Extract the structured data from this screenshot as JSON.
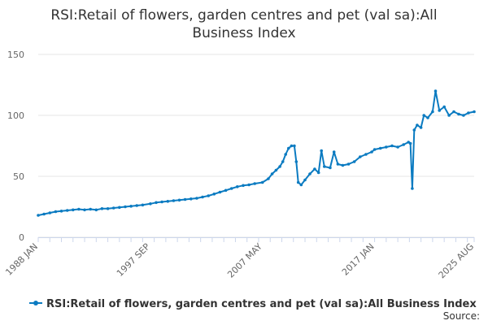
{
  "chart_data": {
    "type": "line",
    "title_lines": [
      "RSI:Retail of flowers, garden centres and pet (val sa):All",
      "Business Index"
    ],
    "xlabel": "",
    "ylabel": "",
    "ylim": [
      0,
      150
    ],
    "yticks": [
      0,
      50,
      100,
      150
    ],
    "x_range": [
      "1988-01",
      "2025-08"
    ],
    "x_tick_labels": [
      "1988 JAN",
      "1997 SEP",
      "2007 MAY",
      "2017 JAN",
      "2025 AUG"
    ],
    "grid": true,
    "legend_position": "bottom",
    "series": [
      {
        "name": "RSI:Retail of flowers, garden centres and pet (val sa):All Business Index",
        "color": "#0b7bc1",
        "points": [
          [
            "1988-01",
            18
          ],
          [
            "1988-07",
            19
          ],
          [
            "1989-01",
            20
          ],
          [
            "1989-07",
            21
          ],
          [
            "1990-01",
            21.5
          ],
          [
            "1990-07",
            22
          ],
          [
            "1991-01",
            22.5
          ],
          [
            "1991-07",
            23
          ],
          [
            "1992-01",
            22.5
          ],
          [
            "1992-07",
            23
          ],
          [
            "1993-01",
            22.5
          ],
          [
            "1993-07",
            23.5
          ],
          [
            "1994-01",
            23.5
          ],
          [
            "1994-07",
            24
          ],
          [
            "1995-01",
            24.5
          ],
          [
            "1995-07",
            25
          ],
          [
            "1996-01",
            25.5
          ],
          [
            "1996-07",
            26
          ],
          [
            "1997-01",
            26.5
          ],
          [
            "1997-09",
            27.5
          ],
          [
            "1998-03",
            28.5
          ],
          [
            "1998-09",
            29
          ],
          [
            "1999-03",
            29.5
          ],
          [
            "1999-09",
            30
          ],
          [
            "2000-03",
            30.5
          ],
          [
            "2000-09",
            31
          ],
          [
            "2001-03",
            31.5
          ],
          [
            "2001-09",
            32
          ],
          [
            "2002-03",
            33
          ],
          [
            "2002-09",
            34
          ],
          [
            "2003-03",
            35.5
          ],
          [
            "2003-09",
            37
          ],
          [
            "2004-03",
            38.5
          ],
          [
            "2004-09",
            40
          ],
          [
            "2005-03",
            41.5
          ],
          [
            "2005-09",
            42.5
          ],
          [
            "2006-03",
            43
          ],
          [
            "2006-09",
            44
          ],
          [
            "2007-05",
            45
          ],
          [
            "2007-11",
            48
          ],
          [
            "2008-03",
            52
          ],
          [
            "2008-07",
            55
          ],
          [
            "2008-11",
            58
          ],
          [
            "2009-02",
            62
          ],
          [
            "2009-05",
            68
          ],
          [
            "2009-08",
            73
          ],
          [
            "2009-11",
            75
          ],
          [
            "2010-02",
            75
          ],
          [
            "2010-04",
            62
          ],
          [
            "2010-06",
            45
          ],
          [
            "2010-09",
            43
          ],
          [
            "2011-01",
            47
          ],
          [
            "2011-06",
            52
          ],
          [
            "2011-11",
            56
          ],
          [
            "2012-03",
            53
          ],
          [
            "2012-06",
            71
          ],
          [
            "2012-09",
            58
          ],
          [
            "2013-03",
            57
          ],
          [
            "2013-07",
            70
          ],
          [
            "2013-11",
            60
          ],
          [
            "2014-04",
            59
          ],
          [
            "2014-10",
            60
          ],
          [
            "2015-04",
            62
          ],
          [
            "2015-10",
            66
          ],
          [
            "2016-04",
            68
          ],
          [
            "2016-10",
            70
          ],
          [
            "2017-01",
            72
          ],
          [
            "2017-07",
            73
          ],
          [
            "2018-01",
            74
          ],
          [
            "2018-07",
            75
          ],
          [
            "2019-01",
            74
          ],
          [
            "2019-07",
            76
          ],
          [
            "2019-12",
            78
          ],
          [
            "2020-02",
            77
          ],
          [
            "2020-04",
            40
          ],
          [
            "2020-06",
            88
          ],
          [
            "2020-09",
            92
          ],
          [
            "2021-01",
            90
          ],
          [
            "2021-04",
            100
          ],
          [
            "2021-08",
            98
          ],
          [
            "2022-01",
            103
          ],
          [
            "2022-04",
            120
          ],
          [
            "2022-08",
            104
          ],
          [
            "2023-01",
            107
          ],
          [
            "2023-06",
            100
          ],
          [
            "2023-11",
            103
          ],
          [
            "2024-04",
            101
          ],
          [
            "2024-09",
            100
          ],
          [
            "2025-02",
            102
          ],
          [
            "2025-08",
            103
          ]
        ]
      }
    ]
  },
  "source_label": "Source:"
}
